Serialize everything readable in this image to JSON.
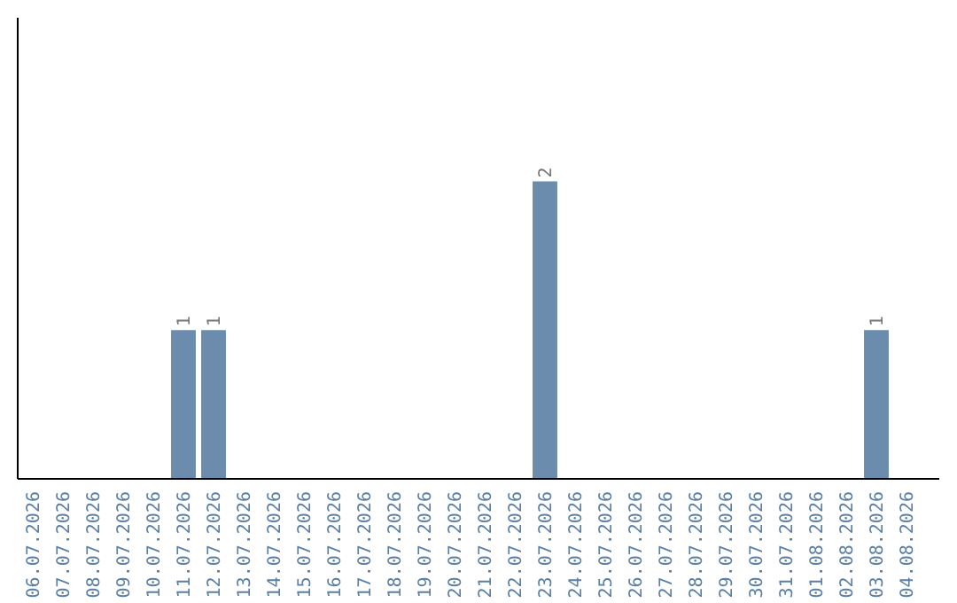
{
  "chart_data": {
    "type": "bar",
    "categories": [
      "06.07.2026",
      "07.07.2026",
      "08.07.2026",
      "09.07.2026",
      "10.07.2026",
      "11.07.2026",
      "12.07.2026",
      "13.07.2026",
      "14.07.2026",
      "15.07.2026",
      "16.07.2026",
      "17.07.2026",
      "18.07.2026",
      "19.07.2026",
      "20.07.2026",
      "21.07.2026",
      "22.07.2026",
      "23.07.2026",
      "24.07.2026",
      "25.07.2026",
      "26.07.2026",
      "27.07.2026",
      "28.07.2026",
      "29.07.2026",
      "30.07.2026",
      "31.07.2026",
      "01.08.2026",
      "02.08.2026",
      "03.08.2026",
      "04.08.2026"
    ],
    "values": [
      0,
      0,
      0,
      0,
      0,
      1,
      1,
      0,
      0,
      0,
      0,
      0,
      0,
      0,
      0,
      0,
      0,
      2,
      0,
      0,
      0,
      0,
      0,
      0,
      0,
      0,
      0,
      0,
      1,
      0
    ],
    "value_labels": [
      null,
      null,
      null,
      null,
      null,
      "1",
      "1",
      null,
      null,
      null,
      null,
      null,
      null,
      null,
      null,
      null,
      null,
      "2",
      null,
      null,
      null,
      null,
      null,
      null,
      null,
      null,
      null,
      null,
      "1",
      null
    ],
    "color": "#6b8cac",
    "ylim": [
      0,
      3.1
    ],
    "tick_labels": "x"
  }
}
